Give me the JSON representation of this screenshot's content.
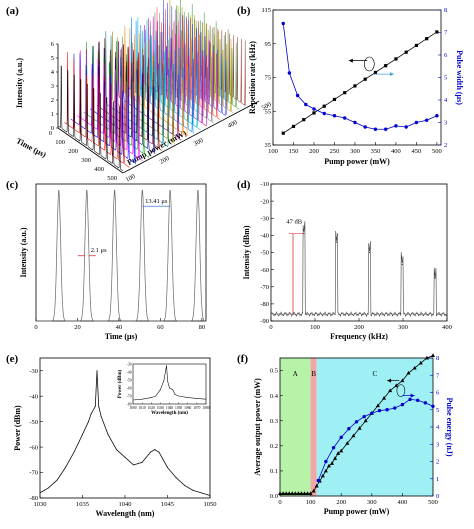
{
  "panels": {
    "a": {
      "label": "(a)",
      "chart_data": {
        "type": "line",
        "style": "3d-waterfall",
        "zlabel": "Intensity (a.u.)",
        "xlabel": "Time (μs)",
        "ylabel": "Pump power (mW)",
        "z_ticks": [
          "0",
          "1",
          "2",
          "3",
          "4",
          "5",
          "6"
        ],
        "time_ticks": [
          "0",
          "100",
          "200",
          "300",
          "400",
          "500"
        ],
        "pump_ticks": [
          "100",
          "200",
          "300",
          "400",
          "500"
        ],
        "pump_values": [
          110,
          130,
          150,
          170,
          190,
          210,
          230,
          250,
          270,
          290,
          310,
          330,
          350,
          370,
          390,
          410,
          430,
          450,
          470,
          490
        ],
        "colors": [
          "#000000",
          "#ff0000",
          "#0000ff",
          "#ff00ff",
          "#00aa00",
          "#000080",
          "#800000",
          "#008080",
          "#808000",
          "#800080",
          "#ff8000",
          "#0080ff",
          "#00c0c0",
          "#c000c0",
          "#808080",
          "#ff4040",
          "#4040ff",
          "#c0a000",
          "#40a040",
          "#a04040"
        ]
      }
    },
    "b": {
      "label": "(b)",
      "chart_data": {
        "type": "scatter",
        "xlabel": "Pump power (mW)",
        "ylabel": "Repetition rate (kHz)",
        "y2label": "Pulse width (μs)",
        "xlim": [
          100,
          510
        ],
        "ylim": [
          35,
          115
        ],
        "y2lim": [
          2,
          8
        ],
        "x_ticks": [
          "100",
          "150",
          "200",
          "250",
          "300",
          "350",
          "400",
          "450",
          "500"
        ],
        "y_ticks": [
          "35",
          "55",
          "75",
          "95",
          "115"
        ],
        "y2_ticks": [
          "2",
          "3",
          "4",
          "5",
          "6",
          "7",
          "8"
        ],
        "series": [
          {
            "axis": "left",
            "color": "#000000",
            "marker": "square",
            "x": [
              125,
              150,
              175,
              200,
              225,
              250,
              275,
              300,
              325,
              350,
              375,
              400,
              425,
              450,
              475,
              500
            ],
            "y": [
              42,
              46,
              50,
              54,
              58,
              62,
              66,
              70,
              74,
              78,
              82,
              86,
              90,
              94,
              98,
              102
            ]
          },
          {
            "axis": "right",
            "color": "#0000cc",
            "marker": "circle",
            "x": [
              125,
              140,
              160,
              180,
              200,
              225,
              250,
              275,
              300,
              325,
              350,
              375,
              400,
              425,
              450,
              475,
              500
            ],
            "y": [
              7.4,
              5.2,
              4.2,
              3.8,
              3.6,
              3.4,
              3.3,
              3.2,
              3.0,
              2.8,
              2.7,
              2.7,
              2.85,
              2.8,
              3.0,
              3.1,
              3.3
            ]
          }
        ]
      }
    },
    "c": {
      "label": "(c)",
      "chart_data": {
        "type": "line",
        "xlabel": "Time (μs)",
        "ylabel": "Intensity (a.u.)",
        "xlim": [
          0,
          82
        ],
        "ylim": [
          0,
          1.05
        ],
        "x_ticks": [
          "0",
          "20",
          "40",
          "60",
          "80"
        ],
        "x": [
          11.0,
          24.5,
          37.9,
          51.3,
          64.7,
          78.1
        ],
        "y": [
          1.0,
          1.0,
          1.0,
          1.0,
          1.0,
          1.0
        ],
        "pulse_fwhm_us": 2.1,
        "annotations": [
          "2.1 μs",
          "13.41 μs"
        ]
      }
    },
    "d": {
      "label": "(d)",
      "chart_data": {
        "type": "line",
        "xlabel": "Frequency (kHz)",
        "ylabel": "Intensity (dBm)",
        "xlim": [
          0,
          400
        ],
        "ylim": [
          -90,
          -10
        ],
        "x_ticks": [
          "0",
          "100",
          "200",
          "300",
          "400"
        ],
        "y_ticks": [
          "-90",
          "-80",
          "-70",
          "-60",
          "-50",
          "-40",
          "-30",
          "-20",
          "-10"
        ],
        "noise_floor_dbm": -86,
        "x": [
          74.6,
          149.2,
          223.8,
          298.4,
          373.0
        ],
        "y": [
          -39,
          -44,
          -50,
          -57,
          -65
        ],
        "annotations": [
          "47 dB"
        ]
      }
    },
    "e": {
      "label": "(e)",
      "chart_data": {
        "type": "line",
        "xlabel": "Wavelength (nm)",
        "ylabel": "Power (dBm)",
        "xlim": [
          1030,
          1050
        ],
        "ylim": [
          -80,
          -25
        ],
        "x_ticks": [
          "1030",
          "1035",
          "1040",
          "1045",
          "1050"
        ],
        "y_ticks": [
          "-80",
          "-70",
          "-60",
          "-50",
          "-40",
          "-30"
        ],
        "x": [
          1030,
          1031,
          1032,
          1033,
          1034,
          1035,
          1035.7,
          1036,
          1036.5,
          1036.7,
          1036.9,
          1037.2,
          1038,
          1039,
          1040,
          1041,
          1042,
          1043,
          1043.5,
          1044,
          1045,
          1046,
          1047,
          1048,
          1049,
          1050
        ],
        "y": [
          -78,
          -76,
          -73,
          -68,
          -62,
          -55,
          -50,
          -47,
          -44,
          -30,
          -44,
          -48,
          -55,
          -61,
          -64,
          -67,
          -66,
          -62,
          -61,
          -62,
          -68,
          -72,
          -75,
          -77,
          -78,
          -79
        ],
        "inset": {
          "xlabel": "Wavelength (nm)",
          "ylabel": "Power (dBm)",
          "xlim": [
            1000,
            1080
          ],
          "ylim": [
            -80,
            -30
          ],
          "x_ticks": [
            "1000",
            "1010",
            "1020",
            "1030",
            "1040",
            "1050",
            "1060",
            "1070",
            "1080"
          ],
          "y_ticks": [
            "-80",
            "-70",
            "-60",
            "-50",
            "-40",
            "-30"
          ],
          "x": [
            1000,
            1010,
            1020,
            1025,
            1030,
            1034,
            1036.7,
            1038,
            1040,
            1043.5,
            1046,
            1050,
            1060,
            1070,
            1080
          ],
          "y": [
            -75,
            -74,
            -72,
            -70,
            -62,
            -50,
            -32,
            -52,
            -60,
            -62,
            -68,
            -70,
            -72,
            -73,
            -74
          ]
        }
      }
    },
    "f": {
      "label": "(f)",
      "chart_data": {
        "type": "line",
        "xlabel": "Pump power (mW)",
        "ylabel": "Average output power (mW)",
        "y2label": "Pulse energy (nJ)",
        "xlim": [
          0,
          500
        ],
        "ylim": [
          0,
          0.55
        ],
        "y2lim": [
          0,
          8
        ],
        "x_ticks": [
          "0",
          "100",
          "200",
          "300",
          "400",
          "500"
        ],
        "y_ticks": [
          "0.0",
          "0.1",
          "0.2",
          "0.3",
          "0.4",
          "0.5"
        ],
        "y2_ticks": [
          "0",
          "1",
          "2",
          "3",
          "4",
          "5",
          "6",
          "7",
          "8"
        ],
        "regions": [
          {
            "label": "A",
            "x0": 0,
            "x1": 100,
            "color": "#b6f2a8"
          },
          {
            "label": "B",
            "x0": 100,
            "x1": 120,
            "color": "#f3a6a6"
          },
          {
            "label": "C",
            "x0": 120,
            "x1": 500,
            "color": "#9ff0f4"
          }
        ],
        "series": [
          {
            "axis": "left",
            "color": "#000000",
            "marker": "triangle",
            "x": [
              0,
              10,
              20,
              30,
              40,
              50,
              60,
              70,
              80,
              90,
              100,
              110,
              120,
              130,
              140,
              150,
              160,
              170,
              180,
              190,
              200,
              220,
              240,
              260,
              280,
              300,
              320,
              340,
              360,
              380,
              400,
              420,
              440,
              460,
              480,
              500
            ],
            "y": [
              0.01,
              0.01,
              0.01,
              0.01,
              0.01,
              0.01,
              0.01,
              0.01,
              0.01,
              0.01,
              0.01,
              0.02,
              0.04,
              0.06,
              0.08,
              0.1,
              0.12,
              0.13,
              0.15,
              0.17,
              0.18,
              0.21,
              0.24,
              0.27,
              0.3,
              0.33,
              0.36,
              0.39,
              0.42,
              0.44,
              0.46,
              0.49,
              0.51,
              0.53,
              0.55,
              0.56
            ]
          },
          {
            "axis": "right",
            "color": "#0000cc",
            "marker": "circle",
            "x": [
              125,
              150,
              175,
              200,
              225,
              250,
              275,
              300,
              325,
              350,
              375,
              400,
              425,
              450,
              475,
              500
            ],
            "y": [
              0.9,
              2.0,
              2.8,
              3.4,
              3.9,
              4.3,
              4.6,
              4.8,
              4.95,
              5.0,
              5.1,
              5.3,
              5.6,
              5.55,
              5.4,
              5.2
            ]
          }
        ]
      }
    }
  }
}
